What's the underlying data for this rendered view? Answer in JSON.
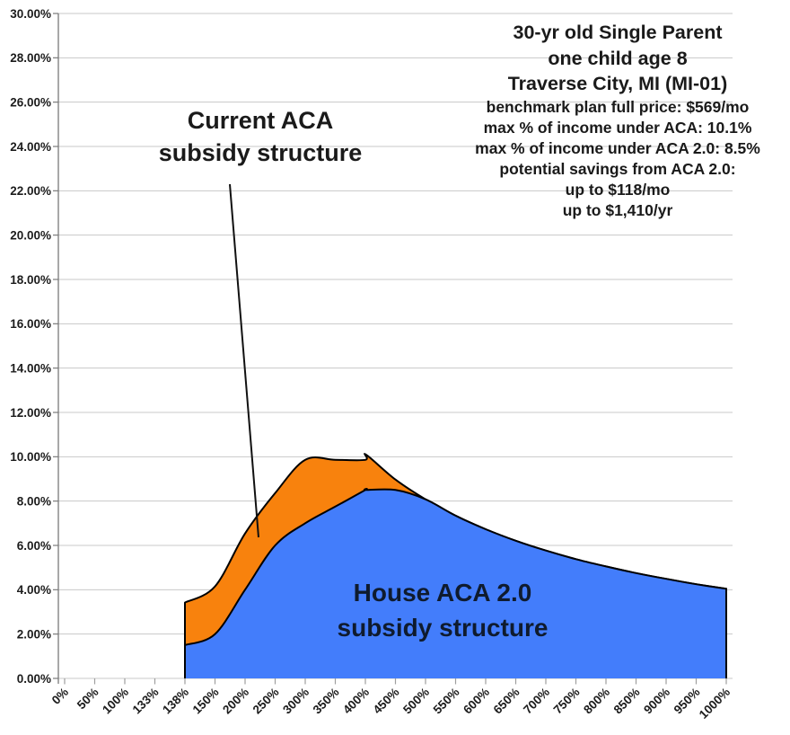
{
  "chart_data": {
    "type": "area",
    "title": "",
    "x_tick_labels": [
      "0%",
      "50%",
      "100%",
      "133%",
      "138%",
      "150%",
      "200%",
      "250%",
      "300%",
      "350%",
      "400%",
      "450%",
      "500%",
      "550%",
      "600%",
      "650%",
      "700%",
      "750%",
      "800%",
      "850%",
      "900%",
      "950%",
      "1000%"
    ],
    "x_tick_values": [
      0,
      50,
      100,
      133,
      138,
      150,
      200,
      250,
      300,
      350,
      400,
      450,
      500,
      550,
      600,
      650,
      700,
      750,
      800,
      850,
      900,
      950,
      1000
    ],
    "y_tick_labels": [
      "30.00%",
      "28.00%",
      "26.00%",
      "24.00%",
      "22.00%",
      "20.00%",
      "18.00%",
      "16.00%",
      "14.00%",
      "12.00%",
      "10.00%",
      "8.00%",
      "6.00%",
      "4.00%",
      "2.00%",
      "0.00%"
    ],
    "y_axis": {
      "min": 0,
      "max": 30,
      "step": 2,
      "unit": "%"
    },
    "grid": "horizontal",
    "legend_position": "none",
    "series": [
      {
        "name": "Current ACA subsidy structure",
        "color": "#F8820D",
        "line_color": "#000000",
        "points": [
          [
            138,
            3.42
          ],
          [
            150,
            4.15
          ],
          [
            200,
            6.54
          ],
          [
            250,
            8.36
          ],
          [
            300,
            9.86
          ],
          [
            350,
            9.86
          ],
          [
            400,
            9.86
          ],
          [
            401,
            10.1
          ],
          [
            450,
            8.97
          ],
          [
            500,
            8.08
          ],
          [
            550,
            7.34
          ],
          [
            600,
            6.73
          ],
          [
            650,
            6.21
          ],
          [
            700,
            5.77
          ],
          [
            750,
            5.38
          ],
          [
            800,
            5.05
          ],
          [
            850,
            4.75
          ],
          [
            900,
            4.49
          ],
          [
            950,
            4.25
          ],
          [
            1000,
            4.04
          ]
        ]
      },
      {
        "name": "House ACA 2.0 subsidy structure",
        "color": "#437DFB",
        "line_color": "#000000",
        "points": [
          [
            138,
            1.5
          ],
          [
            150,
            2.0
          ],
          [
            200,
            4.0
          ],
          [
            250,
            6.0
          ],
          [
            300,
            7.0
          ],
          [
            350,
            7.75
          ],
          [
            400,
            8.5
          ],
          [
            401,
            8.5
          ],
          [
            450,
            8.5
          ],
          [
            500,
            8.08
          ],
          [
            550,
            7.34
          ],
          [
            600,
            6.73
          ],
          [
            650,
            6.21
          ],
          [
            700,
            5.77
          ],
          [
            750,
            5.38
          ],
          [
            800,
            5.05
          ],
          [
            850,
            4.75
          ],
          [
            900,
            4.49
          ],
          [
            950,
            4.25
          ],
          [
            1000,
            4.04
          ]
        ]
      }
    ],
    "colors": {
      "grid": "#C8C8C8",
      "axis": "#7A7A7A",
      "tick": "#9E9E9E",
      "text": "#1C1C1C"
    }
  },
  "labels": {
    "current_aca": {
      "line1": "Current ACA",
      "line2": "subsidy structure",
      "color": "#1A1A1A"
    },
    "house_aca": {
      "line1": "House ACA 2.0",
      "line2": "subsidy structure",
      "color": "#0F1B2E"
    }
  },
  "annotation": {
    "color": "#1A1A1A",
    "header": [
      "30-yr old Single Parent",
      "one child age 8",
      "Traverse City, MI (MI-01)"
    ],
    "details": [
      "benchmark plan full price: $569/mo",
      "max % of income under ACA: 10.1%",
      "max % of income under ACA 2.0: 8.5%",
      "potential savings from ACA 2.0:",
      "up to $118/mo",
      "up to $1,410/yr"
    ]
  }
}
